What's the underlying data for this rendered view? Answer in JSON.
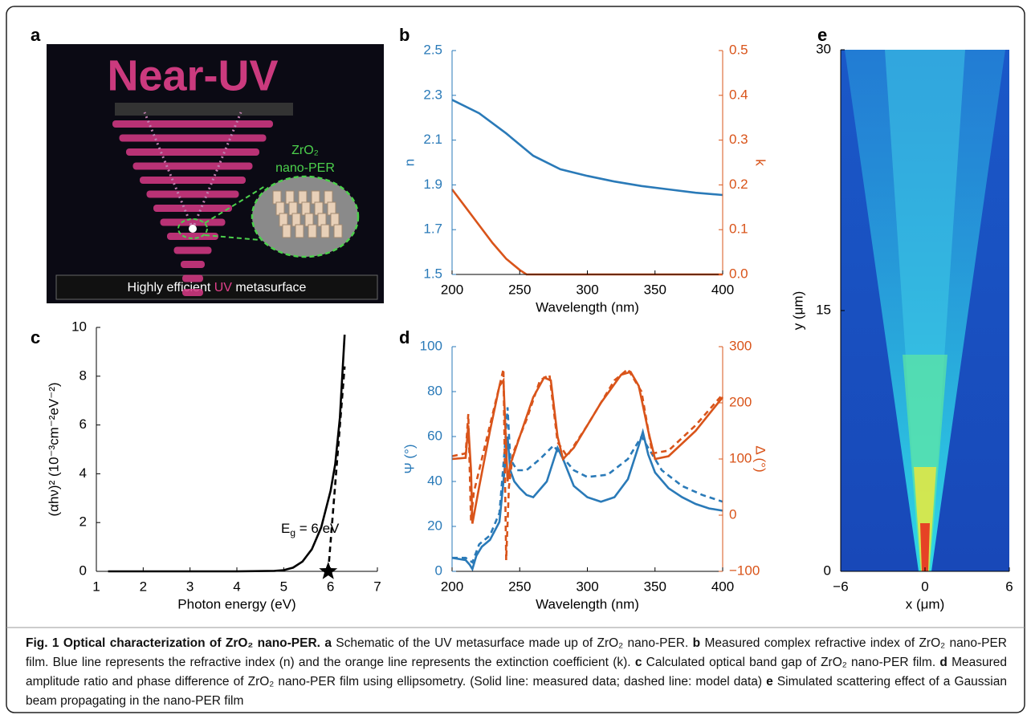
{
  "panel_a": {
    "label": "a",
    "title": "Near-UV",
    "material": "ZrO₂",
    "material_line2": "nano-PER",
    "banner_prefix": "Highly efficient ",
    "banner_highlight": "UV",
    "banner_suffix": " metasurface"
  },
  "chart_data": [
    {
      "type": "line",
      "label": "b",
      "xlabel": "Wavelength (nm)",
      "ylabel": "n",
      "y2label": "k",
      "xlim": [
        200,
        400
      ],
      "xticks": [
        200,
        250,
        300,
        350,
        400
      ],
      "ylim": [
        1.5,
        2.5
      ],
      "yticks": [
        1.5,
        1.7,
        1.9,
        2.1,
        2.3,
        2.5
      ],
      "ycolor": "#2a7ab8",
      "y2lim": [
        0,
        0.5
      ],
      "y2ticks": [
        {
          "value": 0,
          "label": "0.0"
        },
        0.1,
        0.2,
        0.3,
        0.4,
        0.5
      ],
      "y2color": "#d9541a",
      "series": [
        {
          "color": "#2a7ab8",
          "x": [
            200,
            220,
            240,
            260,
            280,
            300,
            320,
            340,
            360,
            380,
            400
          ],
          "values": [
            2.28,
            2.22,
            2.13,
            2.03,
            1.97,
            1.94,
            1.915,
            1.895,
            1.88,
            1.865,
            1.855
          ]
        },
        {
          "color": "#d9541a",
          "axis": "y2",
          "x": [
            200,
            210,
            220,
            230,
            240,
            250,
            255,
            260,
            300,
            350,
            400
          ],
          "values": [
            0.19,
            0.15,
            0.11,
            0.07,
            0.035,
            0.01,
            0.0,
            0,
            0,
            0,
            0
          ]
        }
      ]
    },
    {
      "type": "line",
      "label": "c",
      "xlabel": "Photon energy (eV)",
      "ylabel": "(αhν)² (10⁻³cm⁻²eV⁻²)",
      "xlim": [
        1,
        7
      ],
      "xticks": [
        1,
        2,
        3,
        4,
        5,
        6,
        7
      ],
      "ylim": [
        0,
        10
      ],
      "yticks": [
        0,
        2,
        4,
        6,
        8,
        10
      ],
      "series": [
        {
          "color": "#000000",
          "x": [
            1.25,
            2,
            3,
            4,
            4.8,
            5,
            5.2,
            5.4,
            5.6,
            5.8,
            6.0,
            6.1,
            6.2,
            6.3
          ],
          "values": [
            0,
            0,
            0,
            0,
            0.02,
            0.05,
            0.15,
            0.4,
            0.9,
            1.8,
            3.3,
            4.4,
            6.3,
            9.7
          ]
        },
        {
          "color": "#000000",
          "dashed": true,
          "x": [
            5.95,
            6.3
          ],
          "values": [
            0,
            8.4
          ]
        }
      ],
      "marker": {
        "x": 5.95,
        "y": 0
      },
      "annotation": {
        "text": "E",
        "subscript": "g",
        "rest": " = 6 eV"
      }
    },
    {
      "type": "line",
      "label": "d",
      "xlabel": "Wavelength (nm)",
      "ylabel": "Ψ (°)",
      "y2label": "Δ (°)",
      "xlim": [
        200,
        400
      ],
      "xticks": [
        200,
        250,
        300,
        350,
        400
      ],
      "ylim": [
        0,
        100
      ],
      "yticks": [
        0,
        20,
        40,
        60,
        80,
        100
      ],
      "ycolor": "#2a7ab8",
      "y2lim": [
        -100,
        300
      ],
      "y2ticks": [
        {
          "value": -100,
          "label": "−100"
        },
        0,
        100,
        200,
        300
      ],
      "y2color": "#d9541a",
      "series": [
        {
          "color": "#2a7ab8",
          "x": [
            200,
            210,
            213,
            215,
            218,
            222,
            228,
            235,
            238,
            241,
            243,
            246,
            250,
            255,
            260,
            270,
            278,
            282,
            290,
            300,
            310,
            320,
            330,
            338,
            341,
            345,
            350,
            360,
            370,
            380,
            390,
            400
          ],
          "values": [
            6,
            5,
            3,
            1,
            7,
            11,
            14,
            22,
            40,
            60,
            45,
            40,
            37,
            34,
            33,
            40,
            55,
            50,
            38,
            33,
            31,
            33,
            41,
            56,
            62,
            52,
            44,
            37,
            33,
            30,
            28,
            27
          ]
        },
        {
          "color": "#2a7ab8",
          "dashed": true,
          "x": [
            200,
            210,
            215,
            220,
            228,
            235,
            239,
            241,
            243,
            248,
            255,
            265,
            275,
            280,
            290,
            300,
            315,
            330,
            340,
            345,
            355,
            370,
            385,
            400
          ],
          "values": [
            6,
            6,
            4,
            12,
            16,
            26,
            55,
            73,
            50,
            45,
            45,
            50,
            56,
            52,
            45,
            42,
            43,
            50,
            60,
            55,
            45,
            38,
            34,
            31
          ]
        },
        {
          "color": "#d9541a",
          "axis": "y2",
          "x": [
            200,
            210,
            212,
            214,
            215,
            220,
            228,
            235,
            238,
            241,
            243,
            250,
            260,
            268,
            273,
            278,
            282,
            290,
            310,
            325,
            332,
            338,
            345,
            350,
            360,
            380,
            400
          ],
          "values": [
            100,
            102,
            160,
            80,
            -15,
            50,
            150,
            230,
            240,
            60,
            90,
            140,
            210,
            245,
            240,
            140,
            100,
            120,
            200,
            250,
            255,
            230,
            150,
            100,
            105,
            150,
            210
          ]
        },
        {
          "color": "#d9541a",
          "axis": "y2",
          "dashed": true,
          "x": [
            200,
            210,
            212,
            214,
            216,
            225,
            234,
            238,
            240,
            242,
            245,
            255,
            265,
            272,
            278,
            285,
            300,
            320,
            330,
            340,
            348,
            360,
            380,
            400
          ],
          "values": [
            105,
            110,
            180,
            -10,
            40,
            130,
            220,
            260,
            -80,
            50,
            110,
            170,
            240,
            250,
            130,
            105,
            160,
            240,
            260,
            220,
            110,
            115,
            160,
            215
          ]
        }
      ]
    },
    {
      "type": "heatmap",
      "label": "e",
      "xlabel": "x (μm)",
      "ylabel": "y (μm)",
      "xlim": [
        -6,
        6
      ],
      "xticks": [
        {
          "value": -6,
          "label": "−6"
        },
        0,
        6
      ],
      "ylim": [
        0,
        30
      ],
      "yticks": [
        0,
        15,
        30
      ]
    }
  ],
  "caption": {
    "title": "Fig. 1 Optical characterization of ZrO₂ nano-PER.",
    "parts": [
      "a",
      " Schematic of the UV metasurface made up of ZrO₂ nano-PER. ",
      "b",
      " Measured complex refractive index of ZrO₂ nano-PER film. Blue line represents the refractive index (n) and the orange line represents the extinction coefficient (k). ",
      "c",
      " Calculated optical band gap of ZrO₂ nano-PER film. ",
      "d",
      " Measured amplitude ratio and phase difference of ZrO₂ nano-PER film using ellipsometry. (Solid line: measured data; dashed line: model data) ",
      "e",
      " Simulated scattering effect of a Gaussian beam propagating in the nano-PER film"
    ]
  }
}
